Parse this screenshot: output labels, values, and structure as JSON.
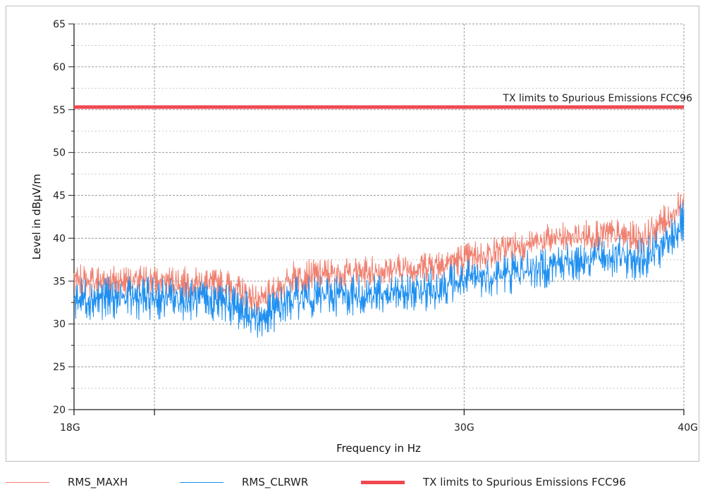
{
  "chart_data": {
    "type": "line",
    "title": "",
    "xlabel": "Frequency in Hz",
    "ylabel": "Level in dBµV/m",
    "x_scale": "log",
    "xlim": [
      "18G",
      "40G"
    ],
    "x_ticks": [
      "18G",
      "30G",
      "40G"
    ],
    "ylim": [
      20,
      65
    ],
    "y_ticks": [
      "20",
      "25",
      "30",
      "35",
      "40",
      "45",
      "50",
      "55",
      "60",
      "65"
    ],
    "grid": true,
    "legend_position": "bottom",
    "series": [
      {
        "name": "RMS_MAXH",
        "color": "#f08070",
        "x": [
          "18G",
          "20G",
          "22G",
          "23G",
          "24G",
          "26G",
          "28G",
          "30G",
          "32G",
          "34G",
          "36G",
          "38G",
          "39G",
          "40G"
        ],
        "values": [
          35,
          35,
          34.5,
          32.5,
          35.5,
          36,
          36.5,
          37.5,
          39,
          40,
          40.5,
          40,
          42,
          44
        ]
      },
      {
        "name": "RMS_CLRWR",
        "color": "#1e8ff0",
        "x": [
          "18G",
          "20G",
          "22G",
          "23G",
          "24G",
          "26G",
          "28G",
          "30G",
          "32G",
          "34G",
          "36G",
          "38G",
          "39G",
          "40G"
        ],
        "values": [
          33,
          33,
          32.5,
          30.5,
          33,
          33.5,
          33.5,
          35,
          36,
          37,
          38,
          37.5,
          39,
          42
        ]
      },
      {
        "name": "TX limits to Spurious Emissions FCC96",
        "color": "#f04850",
        "x": [
          "18G",
          "40G"
        ],
        "values": [
          55.3,
          55.3
        ]
      }
    ],
    "annotations": [
      {
        "text": "TX limits to Spurious Emissions FCC96",
        "x": "40G",
        "y": 55.3,
        "color": "#f04850"
      }
    ]
  }
}
